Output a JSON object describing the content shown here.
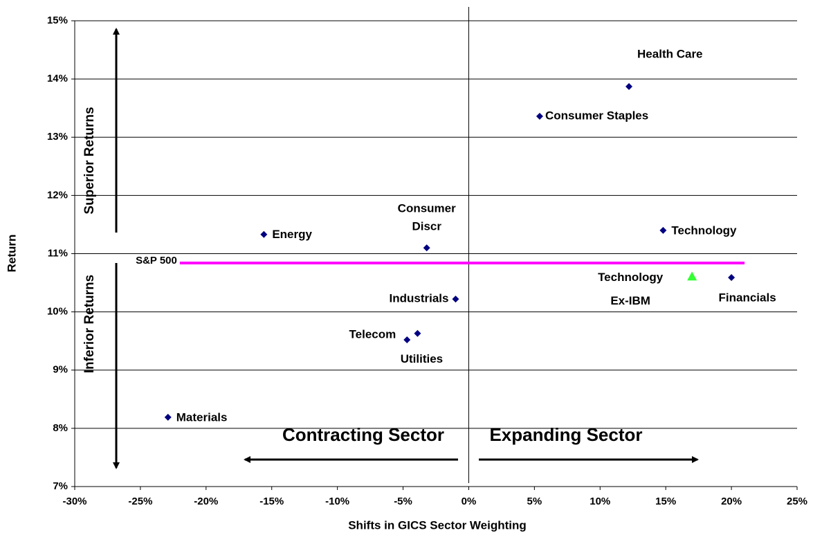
{
  "chart_data": {
    "type": "scatter",
    "x_label": "Shifts in GICS Sector Weighting",
    "y_label": "Return",
    "xlim": [
      -30,
      25
    ],
    "ylim": [
      7,
      15
    ],
    "xticks": [
      {
        "value": -30,
        "label": "-30%"
      },
      {
        "value": -25,
        "label": "-25%"
      },
      {
        "value": -20,
        "label": "-20%"
      },
      {
        "value": -15,
        "label": "-15%"
      },
      {
        "value": -10,
        "label": "-10%"
      },
      {
        "value": -5,
        "label": "-5%"
      },
      {
        "value": 0,
        "label": "0%"
      },
      {
        "value": 5,
        "label": "5%"
      },
      {
        "value": 10,
        "label": "10%"
      },
      {
        "value": 15,
        "label": "15%"
      },
      {
        "value": 20,
        "label": "20%"
      },
      {
        "value": 25,
        "label": "25%"
      }
    ],
    "yticks": [
      {
        "value": 7,
        "label": "7%"
      },
      {
        "value": 8,
        "label": "8%"
      },
      {
        "value": 9,
        "label": "9%"
      },
      {
        "value": 10,
        "label": "10%"
      },
      {
        "value": 11,
        "label": "11%"
      },
      {
        "value": 12,
        "label": "12%"
      },
      {
        "value": 13,
        "label": "13%"
      },
      {
        "value": 14,
        "label": "14%"
      },
      {
        "value": 15,
        "label": "15%"
      }
    ],
    "grid": true,
    "series": [
      {
        "marker": "diamond",
        "color": "#000080",
        "labels": [
          "Health Care",
          "Consumer Staples",
          "Technology",
          "Energy",
          [
            "Consumer",
            "Discr"
          ],
          "Industrials",
          "Telecom",
          "Utilities",
          "Materials",
          "Financials"
        ],
        "x": [
          12.2,
          5.4,
          14.8,
          -15.6,
          -3.2,
          -1.0,
          -4.7,
          -3.9,
          -22.9,
          20.0
        ],
        "values": [
          13.87,
          13.36,
          11.4,
          11.33,
          11.1,
          10.22,
          9.52,
          9.63,
          8.19,
          10.59
        ]
      },
      {
        "marker": "triangle",
        "color": "#33ff33",
        "labels": [
          [
            "Technology",
            "Ex-IBM"
          ]
        ],
        "x": [
          17.0
        ],
        "values": [
          10.61
        ]
      },
      {
        "marker": "line",
        "name": "S&P 500",
        "color": "#ff00ff",
        "x": [
          -22,
          21
        ],
        "values": [
          10.84,
          10.84
        ]
      }
    ],
    "annotations": [
      "Superior Returns",
      "Inferior Returns",
      "Contracting Sector",
      "Expanding Sector"
    ]
  }
}
